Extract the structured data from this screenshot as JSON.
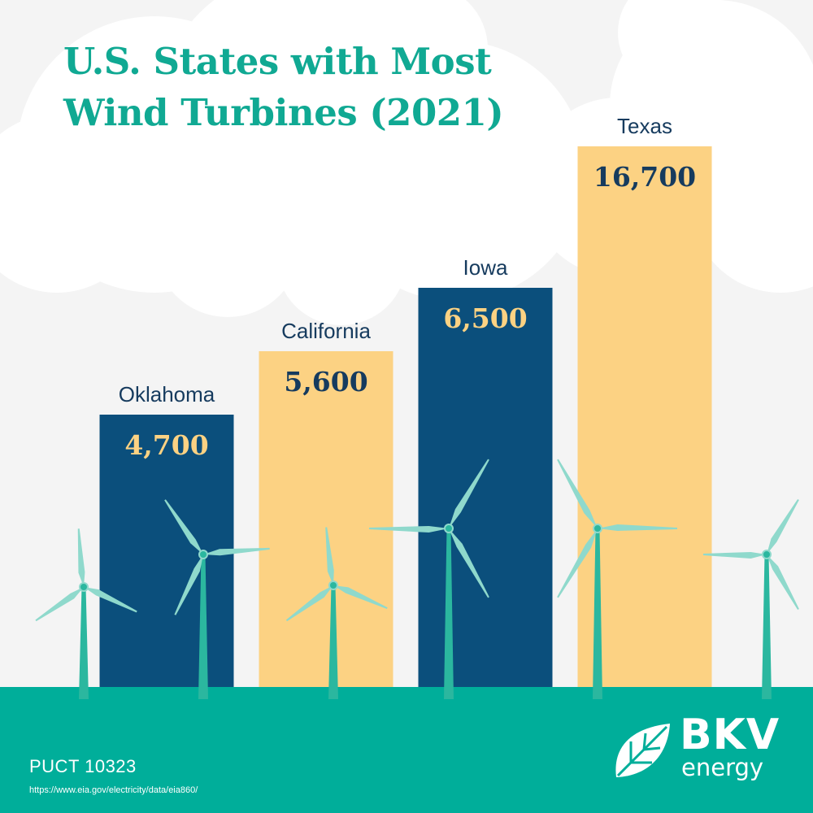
{
  "colors": {
    "background": "#f4f4f4",
    "cloud": "#ffffff",
    "accent": "#10a993",
    "ground": "#00ae9a",
    "bar_dark": "#0b4f7c",
    "bar_light": "#fcd283",
    "label_text": "#163b5e",
    "turbine": "#2bb79f",
    "blade": "#8fd9cc"
  },
  "chart_data": {
    "type": "bar",
    "title": "U.S. States with Most Wind Turbines (2021)",
    "categories": [
      "Oklahoma",
      "California",
      "Iowa",
      "Texas"
    ],
    "values": [
      4700,
      5600,
      6500,
      16700
    ],
    "value_labels": [
      "4,700",
      "5,600",
      "6,500",
      "16,700"
    ],
    "bar_colors": [
      "#0b4f7c",
      "#fcd283",
      "#0b4f7c",
      "#fcd283"
    ],
    "value_label_colors": [
      "#fcd283",
      "#163b5e",
      "#fcd283",
      "#163b5e"
    ],
    "xlabel": "",
    "ylabel": "",
    "axes_visible": false,
    "grid": false
  },
  "footer": {
    "ref_code": "PUCT 10323",
    "source_url": "https://www.eia.gov/electricity/data/eia860/"
  },
  "brand": {
    "name": "BKV",
    "sub": "energy",
    "icon": "leaf-icon"
  }
}
